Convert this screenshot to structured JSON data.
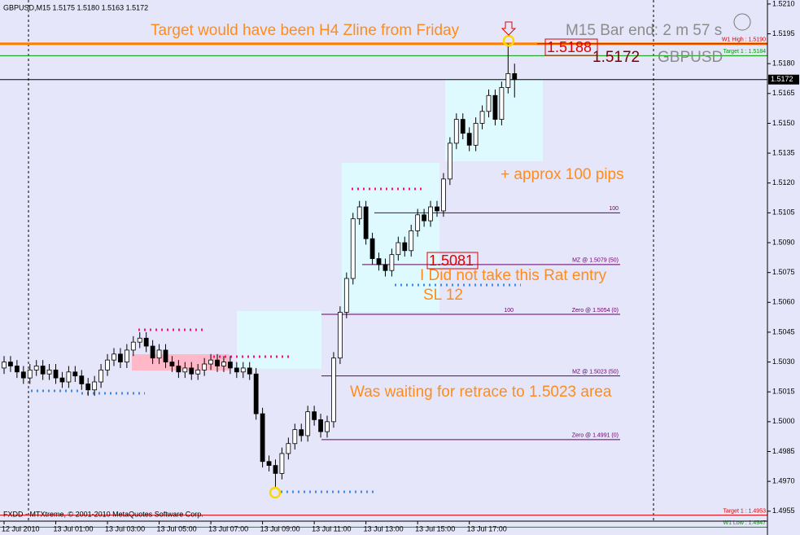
{
  "chart_data": {
    "type": "candlestick",
    "title": "GBPUSD,M15  1.5175 1.5180 1.5163 1.5172",
    "footer": "FXDD - MTXtreme, © 2001-2010 MetaQuotes Software Corp.",
    "timer": "M15 Bar end: 2 m 57 s",
    "symbol": "GBPUSD",
    "price_tag": 1.5172,
    "marked_prices": [
      1.5188,
      1.5081
    ],
    "annotations": [
      "Target would have been H4 Zline from Friday",
      "+ approx 100 pips",
      "I Did not take this Rat entry",
      "SL 12",
      "Was waiting for retrace to 1.5023 area"
    ],
    "categories": [
      "12 Jul 2010",
      null,
      null,
      null,
      null,
      null,
      null,
      null,
      "13 Jul 01:00",
      null,
      null,
      null,
      null,
      null,
      null,
      null,
      "13 Jul 03:00",
      null,
      null,
      null,
      null,
      null,
      null,
      null,
      "13 Jul 05:00",
      null,
      null,
      null,
      null,
      null,
      null,
      null,
      "13 Jul 07:00",
      null,
      null,
      null,
      null,
      null,
      null,
      null,
      "13 Jul 09:00",
      null,
      null,
      null,
      null,
      null,
      null,
      null,
      "13 Jul 11:00",
      null,
      null,
      null,
      null,
      null,
      null,
      null,
      "13 Jul 13:00",
      null,
      null,
      null,
      null,
      null,
      null,
      null,
      "13 Jul 15:00",
      null,
      null,
      null,
      null,
      null,
      null,
      null,
      "13 Jul 17:00",
      null,
      null,
      null,
      null,
      null,
      null,
      null
    ],
    "open": [
      1.5027,
      1.503,
      1.5028,
      1.5025,
      1.5022,
      1.5026,
      1.5028,
      1.5024,
      1.5026,
      1.5022,
      1.502,
      1.5025,
      1.5023,
      1.5019,
      1.5016,
      1.502,
      1.5026,
      1.5031,
      1.5034,
      1.503,
      1.5036,
      1.504,
      1.5042,
      1.5038,
      1.5032,
      1.5036,
      1.503,
      1.5028,
      1.5025,
      1.5027,
      1.5024,
      1.5026,
      1.5029,
      1.5031,
      1.5028,
      1.503,
      1.5027,
      1.5025,
      1.5027,
      1.5024,
      1.5004,
      1.498,
      1.4978,
      1.4974,
      1.4984,
      1.4989,
      1.4996,
      1.4993,
      1.5005,
      1.5001,
      1.4995,
      1.5,
      1.5032,
      1.5055,
      1.5072,
      1.5102,
      1.5108,
      1.5092,
      1.5082,
      1.5079,
      1.5076,
      1.5084,
      1.509,
      1.5086,
      1.5096,
      1.5104,
      1.5101,
      1.5108,
      1.5106,
      1.5122,
      1.514,
      1.5152,
      1.5145,
      1.5139,
      1.515,
      1.5156,
      1.5164,
      1.5152,
      1.5168,
      1.5175
    ],
    "high": [
      1.5033,
      1.5033,
      1.5031,
      1.5028,
      1.5029,
      1.5031,
      1.5031,
      1.5029,
      1.5029,
      1.5025,
      1.5028,
      1.5028,
      1.5026,
      1.5022,
      1.5023,
      1.5029,
      1.5034,
      1.5037,
      1.5037,
      1.5039,
      1.5043,
      1.5045,
      1.5045,
      1.5041,
      1.5039,
      1.5039,
      1.5033,
      1.5031,
      1.503,
      1.503,
      1.5029,
      1.5032,
      1.5034,
      1.5034,
      1.5033,
      1.5033,
      1.503,
      1.503,
      1.503,
      1.5027,
      1.5007,
      1.4983,
      1.4981,
      1.4987,
      1.4992,
      1.4999,
      1.4999,
      1.5008,
      1.5008,
      1.5004,
      1.5003,
      1.5035,
      1.5058,
      1.5075,
      1.5105,
      1.5111,
      1.5111,
      1.5095,
      1.5085,
      1.5082,
      1.5087,
      1.5093,
      1.5093,
      1.5099,
      1.5107,
      1.5107,
      1.5111,
      1.5111,
      1.5125,
      1.5143,
      1.5155,
      1.5155,
      1.5148,
      1.5153,
      1.5159,
      1.5167,
      1.5167,
      1.5171,
      1.519,
      1.518
    ],
    "low": [
      1.5024,
      1.5025,
      1.5022,
      1.5019,
      1.5019,
      1.5023,
      1.5021,
      1.5021,
      1.5019,
      1.5017,
      1.5017,
      1.502,
      1.5016,
      1.5013,
      1.5013,
      1.5017,
      1.5023,
      1.5028,
      1.5027,
      1.5027,
      1.5033,
      1.5037,
      1.5035,
      1.5029,
      1.5029,
      1.5027,
      1.5025,
      1.5022,
      1.5022,
      1.5021,
      1.5021,
      1.5023,
      1.5026,
      1.5025,
      1.5025,
      1.5024,
      1.5022,
      1.5022,
      1.5021,
      1.5001,
      1.4977,
      1.4975,
      1.4967,
      1.4971,
      1.4981,
      1.4986,
      1.499,
      1.499,
      1.4998,
      1.4992,
      1.4992,
      1.4997,
      1.5029,
      1.5052,
      1.5069,
      1.5099,
      1.5089,
      1.5079,
      1.5076,
      1.5073,
      1.5073,
      1.5081,
      1.5083,
      1.5083,
      1.5093,
      1.5098,
      1.5098,
      1.5103,
      1.5103,
      1.5119,
      1.5137,
      1.5142,
      1.5136,
      1.5136,
      1.5147,
      1.5153,
      1.5149,
      1.5149,
      1.5165,
      1.5163
    ],
    "close": [
      1.503,
      1.5028,
      1.5025,
      1.5022,
      1.5026,
      1.5028,
      1.5024,
      1.5026,
      1.5022,
      1.502,
      1.5025,
      1.5023,
      1.5019,
      1.5016,
      1.502,
      1.5026,
      1.5031,
      1.5034,
      1.503,
      1.5036,
      1.504,
      1.5042,
      1.5038,
      1.5032,
      1.5036,
      1.503,
      1.5028,
      1.5025,
      1.5027,
      1.5024,
      1.5026,
      1.5029,
      1.5031,
      1.5028,
      1.503,
      1.5027,
      1.5025,
      1.5027,
      1.5024,
      1.5004,
      1.498,
      1.4978,
      1.4974,
      1.4984,
      1.4989,
      1.4996,
      1.4993,
      1.5005,
      1.5001,
      1.4995,
      1.5,
      1.5032,
      1.5055,
      1.5072,
      1.5102,
      1.5108,
      1.5092,
      1.5082,
      1.5079,
      1.5076,
      1.5084,
      1.509,
      1.5086,
      1.5096,
      1.5104,
      1.5101,
      1.5108,
      1.5106,
      1.5122,
      1.514,
      1.5152,
      1.5145,
      1.5139,
      1.515,
      1.5156,
      1.5164,
      1.5152,
      1.5168,
      1.5175,
      1.5172
    ],
    "levels": [
      {
        "value": 1.519,
        "color": "#ff7f00"
      },
      {
        "name": "W1 High : 1.5190",
        "value": 1.519,
        "color": "#e00000"
      },
      {
        "name": "Target 1 : 1.5184",
        "value": 1.5184,
        "color": "#00a000"
      },
      {
        "name": "100",
        "value": 1.5105,
        "color": "#660066"
      },
      {
        "name": "MZ @ 1.5079 (50)",
        "value": 1.5079,
        "color": "#660066"
      },
      {
        "name": "100",
        "value": 1.5054,
        "color": "#660066"
      },
      {
        "name": "Zero @ 1.5054 (0)",
        "value": 1.5054,
        "color": "#660066"
      },
      {
        "name": "MZ @ 1.5023 (50)",
        "value": 1.5023,
        "color": "#660066"
      },
      {
        "name": "Zero @ 1.4991 (0)",
        "value": 1.4991,
        "color": "#660066"
      },
      {
        "name": "Target 1 : 1.4953",
        "value": 1.4953,
        "color": "#e00000"
      },
      {
        "name": "W1 Low : 1.4947",
        "value": 1.4947,
        "color": "#00a000"
      }
    ],
    "ylim": [
      1.495,
      1.5212
    ],
    "yticks": [
      {
        "value": 1.521,
        "label": "1.5210"
      },
      1.5195,
      {
        "value": 1.518,
        "label": "1.5180"
      },
      1.5165,
      {
        "value": 1.515,
        "label": "1.5150"
      },
      1.5135,
      {
        "value": 1.512,
        "label": "1.5120"
      },
      1.5105,
      {
        "value": 1.509,
        "label": "1.5090"
      },
      1.5075,
      {
        "value": 1.506,
        "label": "1.5060"
      },
      1.5045,
      {
        "value": 1.503,
        "label": "1.5030"
      },
      1.5015,
      {
        "value": 1.5,
        "label": "1.5000"
      },
      1.4985,
      {
        "value": 1.497,
        "label": "1.4970"
      },
      1.4955
    ],
    "background": "#e6e6fa"
  }
}
